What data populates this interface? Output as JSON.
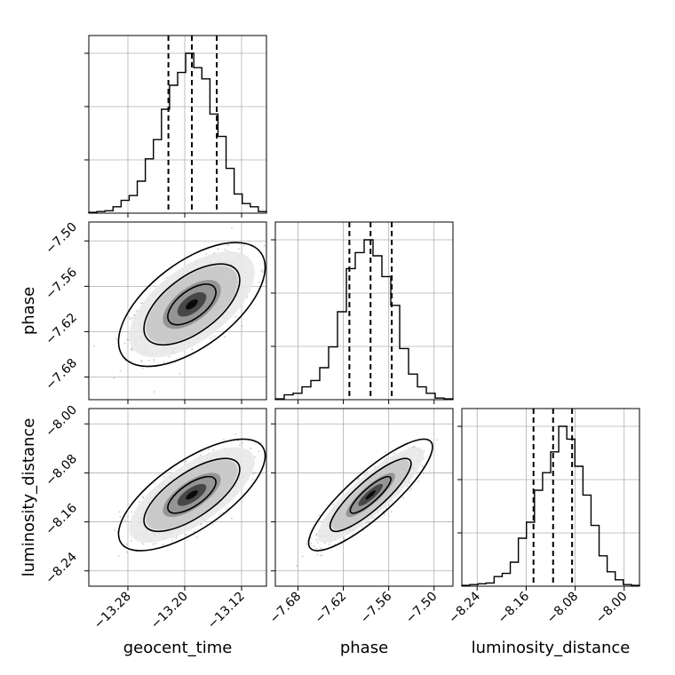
{
  "chart_data": {
    "type": "corner",
    "grid": true,
    "parameters": [
      "geocent_time",
      "phase",
      "luminosity_distance"
    ],
    "axis_labels": {
      "geocent_time": "geocent_time",
      "phase": "phase",
      "luminosity_distance": "luminosity_distance"
    },
    "ranges": {
      "geocent_time": [
        -13.335,
        -13.085
      ],
      "phase": [
        -7.71,
        -7.475
      ],
      "luminosity_distance": [
        -8.265,
        -7.975
      ]
    },
    "ticks": {
      "geocent_time": [
        -13.28,
        -13.2,
        -13.12
      ],
      "phase": [
        -7.68,
        -7.62,
        -7.56,
        -7.5
      ],
      "luminosity_distance": [
        -8.24,
        -8.16,
        -8.08,
        -8.0
      ]
    },
    "tick_labels": {
      "geocent_time": [
        "−13.28",
        "−13.20",
        "−13.12"
      ],
      "phase": [
        "−7.68",
        "−7.62",
        "−7.56",
        "−7.50"
      ],
      "luminosity_distance": [
        "−8.24",
        "−8.16",
        "−8.08",
        "−8.00"
      ]
    },
    "quantiles": {
      "geocent_time": [
        -13.223,
        -13.19,
        -13.155
      ],
      "phase": [
        -7.612,
        -7.584,
        -7.556
      ],
      "luminosity_distance": [
        -8.148,
        -8.116,
        -8.085
      ]
    },
    "histograms": {
      "geocent_time": [
        0.005,
        0.01,
        0.015,
        0.04,
        0.08,
        0.11,
        0.2,
        0.34,
        0.46,
        0.65,
        0.8,
        0.88,
        1.0,
        0.91,
        0.84,
        0.62,
        0.48,
        0.28,
        0.12,
        0.06,
        0.04,
        0.01
      ],
      "phase": [
        0.005,
        0.03,
        0.04,
        0.08,
        0.12,
        0.2,
        0.33,
        0.55,
        0.82,
        0.92,
        1.0,
        0.9,
        0.77,
        0.59,
        0.32,
        0.16,
        0.08,
        0.04,
        0.01,
        0.005
      ],
      "luminosity_distance": [
        0.005,
        0.01,
        0.015,
        0.02,
        0.06,
        0.08,
        0.15,
        0.3,
        0.4,
        0.6,
        0.71,
        0.84,
        1.0,
        0.92,
        0.75,
        0.57,
        0.38,
        0.19,
        0.09,
        0.04,
        0.01,
        0.005
      ]
    },
    "pairs": [
      {
        "x": "geocent_time",
        "y": "phase",
        "center": [
          -13.19,
          -7.584
        ],
        "sd": [
          0.034,
          0.027
        ],
        "rho": 0.6
      },
      {
        "x": "geocent_time",
        "y": "luminosity_distance",
        "center": [
          -13.19,
          -8.116
        ],
        "sd": [
          0.034,
          0.03
        ],
        "rho": 0.7
      },
      {
        "x": "phase",
        "y": "luminosity_distance",
        "center": [
          -7.584,
          -8.116
        ],
        "sd": [
          0.027,
          0.03
        ],
        "rho": 0.86
      }
    ],
    "contour_levels": [
      0.39,
      0.86,
      0.99
    ]
  }
}
